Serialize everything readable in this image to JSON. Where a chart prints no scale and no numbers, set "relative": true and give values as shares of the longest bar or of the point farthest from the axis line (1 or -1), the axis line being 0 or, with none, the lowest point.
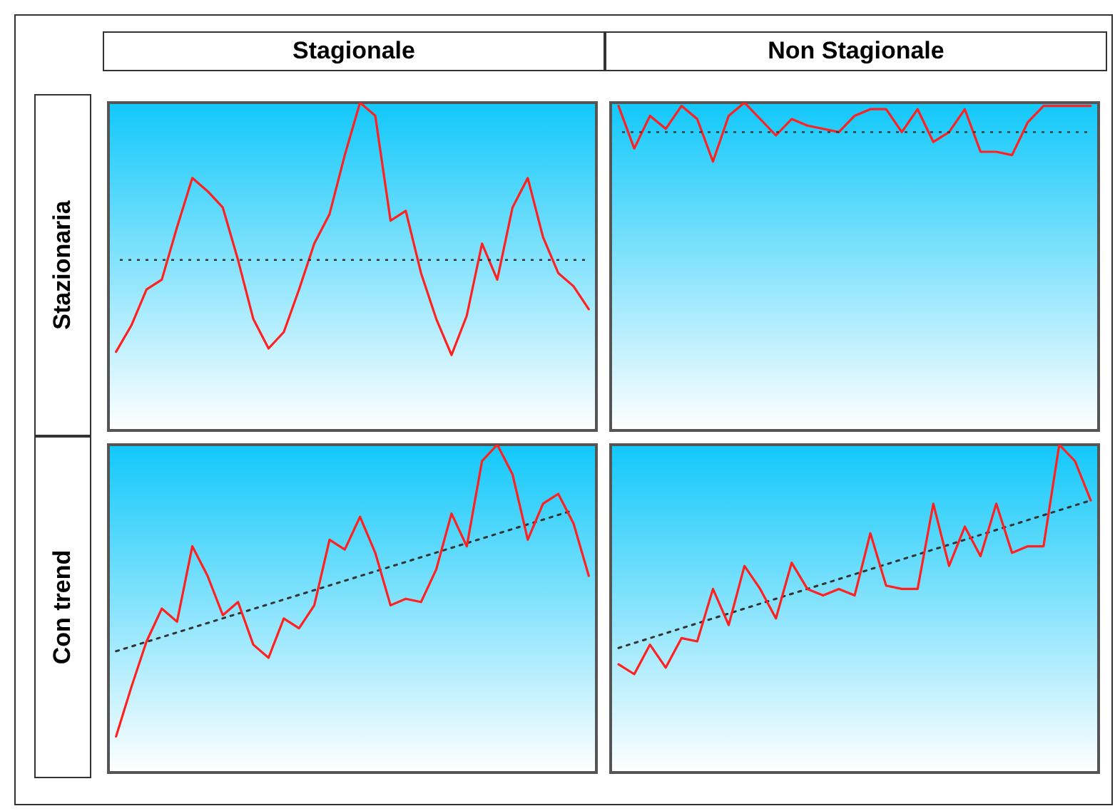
{
  "chart_data": [
    {
      "type": "line",
      "title": "Stagionale",
      "ylabel": "Stazionaria",
      "relative": true,
      "grid": false,
      "tick_labels": false,
      "categories": [
        null,
        null,
        null,
        null,
        null,
        null,
        null,
        null,
        null,
        null,
        null,
        null,
        null,
        null,
        null,
        null,
        null,
        null,
        null,
        null,
        null,
        null,
        null,
        null,
        null,
        null,
        null,
        null,
        null,
        null,
        null,
        null
      ],
      "series": [
        {
          "color": "#ff2020",
          "values": [
            0.24,
            0.32,
            0.43,
            0.46,
            0.62,
            0.77,
            0.73,
            0.68,
            0.52,
            0.34,
            0.25,
            0.3,
            0.43,
            0.57,
            0.66,
            0.84,
            1,
            0.96,
            0.64,
            0.67,
            0.48,
            0.34,
            0.23,
            0.35,
            0.57,
            0.46,
            0.68,
            0.77,
            0.59,
            0.48,
            0.44,
            0.37
          ]
        }
      ],
      "ref_lines": [
        {
          "axis": "y",
          "value": 0.52,
          "color": "#333333",
          "line_style": "dotted"
        }
      ]
    },
    {
      "type": "line",
      "title": "Non Stagionale",
      "relative": true,
      "grid": false,
      "tick_labels": false,
      "categories": [
        null,
        null,
        null,
        null,
        null,
        null,
        null,
        null,
        null,
        null,
        null,
        null,
        null,
        null,
        null,
        null,
        null,
        null,
        null,
        null,
        null,
        null,
        null,
        null,
        null,
        null,
        null,
        null,
        null,
        null,
        null
      ],
      "series": [
        {
          "color": "#ff2020",
          "values": [
            0.99,
            0.86,
            0.96,
            0.92,
            0.99,
            0.95,
            0.82,
            0.96,
            1,
            0.95,
            0.9,
            0.95,
            0.93,
            0.92,
            0.91,
            0.96,
            0.98,
            0.98,
            0.91,
            0.98,
            0.88,
            0.91,
            0.98,
            0.85,
            0.85,
            0.84,
            0.94,
            0.99,
            0.99,
            0.99,
            0.99
          ]
        }
      ],
      "ref_lines": [
        {
          "axis": "y",
          "value": 0.91,
          "color": "#333333",
          "line_style": "dotted"
        }
      ]
    },
    {
      "type": "line",
      "ylabel": "Con trend",
      "relative": true,
      "grid": false,
      "tick_labels": false,
      "categories": [
        null,
        null,
        null,
        null,
        null,
        null,
        null,
        null,
        null,
        null,
        null,
        null,
        null,
        null,
        null,
        null,
        null,
        null,
        null,
        null,
        null,
        null,
        null,
        null,
        null,
        null,
        null,
        null,
        null,
        null,
        null,
        null
      ],
      "series": [
        {
          "color": "#ff2020",
          "values": [
            0.11,
            0.26,
            0.4,
            0.5,
            0.46,
            0.69,
            0.6,
            0.48,
            0.52,
            0.39,
            0.35,
            0.47,
            0.44,
            0.51,
            0.71,
            0.68,
            0.78,
            0.67,
            0.51,
            0.53,
            0.52,
            0.62,
            0.79,
            0.69,
            0.95,
            1,
            0.91,
            0.71,
            0.82,
            0.85,
            0.76,
            0.6
          ]
        },
        {
          "color": "#333333",
          "line_style": "dotted",
          "values": [
            0.37,
            null,
            null,
            null,
            null,
            null,
            null,
            null,
            null,
            null,
            null,
            null,
            null,
            null,
            null,
            null,
            null,
            null,
            null,
            null,
            null,
            null,
            null,
            null,
            null,
            null,
            null,
            null,
            null,
            null,
            0.8,
            null
          ]
        }
      ]
    },
    {
      "type": "line",
      "relative": true,
      "grid": false,
      "tick_labels": false,
      "categories": [
        null,
        null,
        null,
        null,
        null,
        null,
        null,
        null,
        null,
        null,
        null,
        null,
        null,
        null,
        null,
        null,
        null,
        null,
        null,
        null,
        null,
        null,
        null,
        null,
        null,
        null,
        null,
        null,
        null,
        null,
        null
      ],
      "series": [
        {
          "color": "#ff2020",
          "values": [
            0.33,
            0.3,
            0.39,
            0.32,
            0.41,
            0.4,
            0.56,
            0.45,
            0.63,
            0.56,
            0.47,
            0.64,
            0.56,
            0.54,
            0.56,
            0.54,
            0.73,
            0.57,
            0.56,
            0.56,
            0.82,
            0.63,
            0.75,
            0.66,
            0.82,
            0.67,
            0.69,
            0.69,
            1,
            0.95,
            0.83
          ]
        },
        {
          "color": "#333333",
          "line_style": "dotted",
          "values": [
            0.38,
            null,
            null,
            null,
            null,
            null,
            null,
            null,
            null,
            null,
            null,
            null,
            null,
            null,
            null,
            null,
            null,
            null,
            null,
            null,
            null,
            null,
            null,
            null,
            null,
            null,
            null,
            null,
            null,
            null,
            0.83
          ]
        }
      ]
    }
  ]
}
